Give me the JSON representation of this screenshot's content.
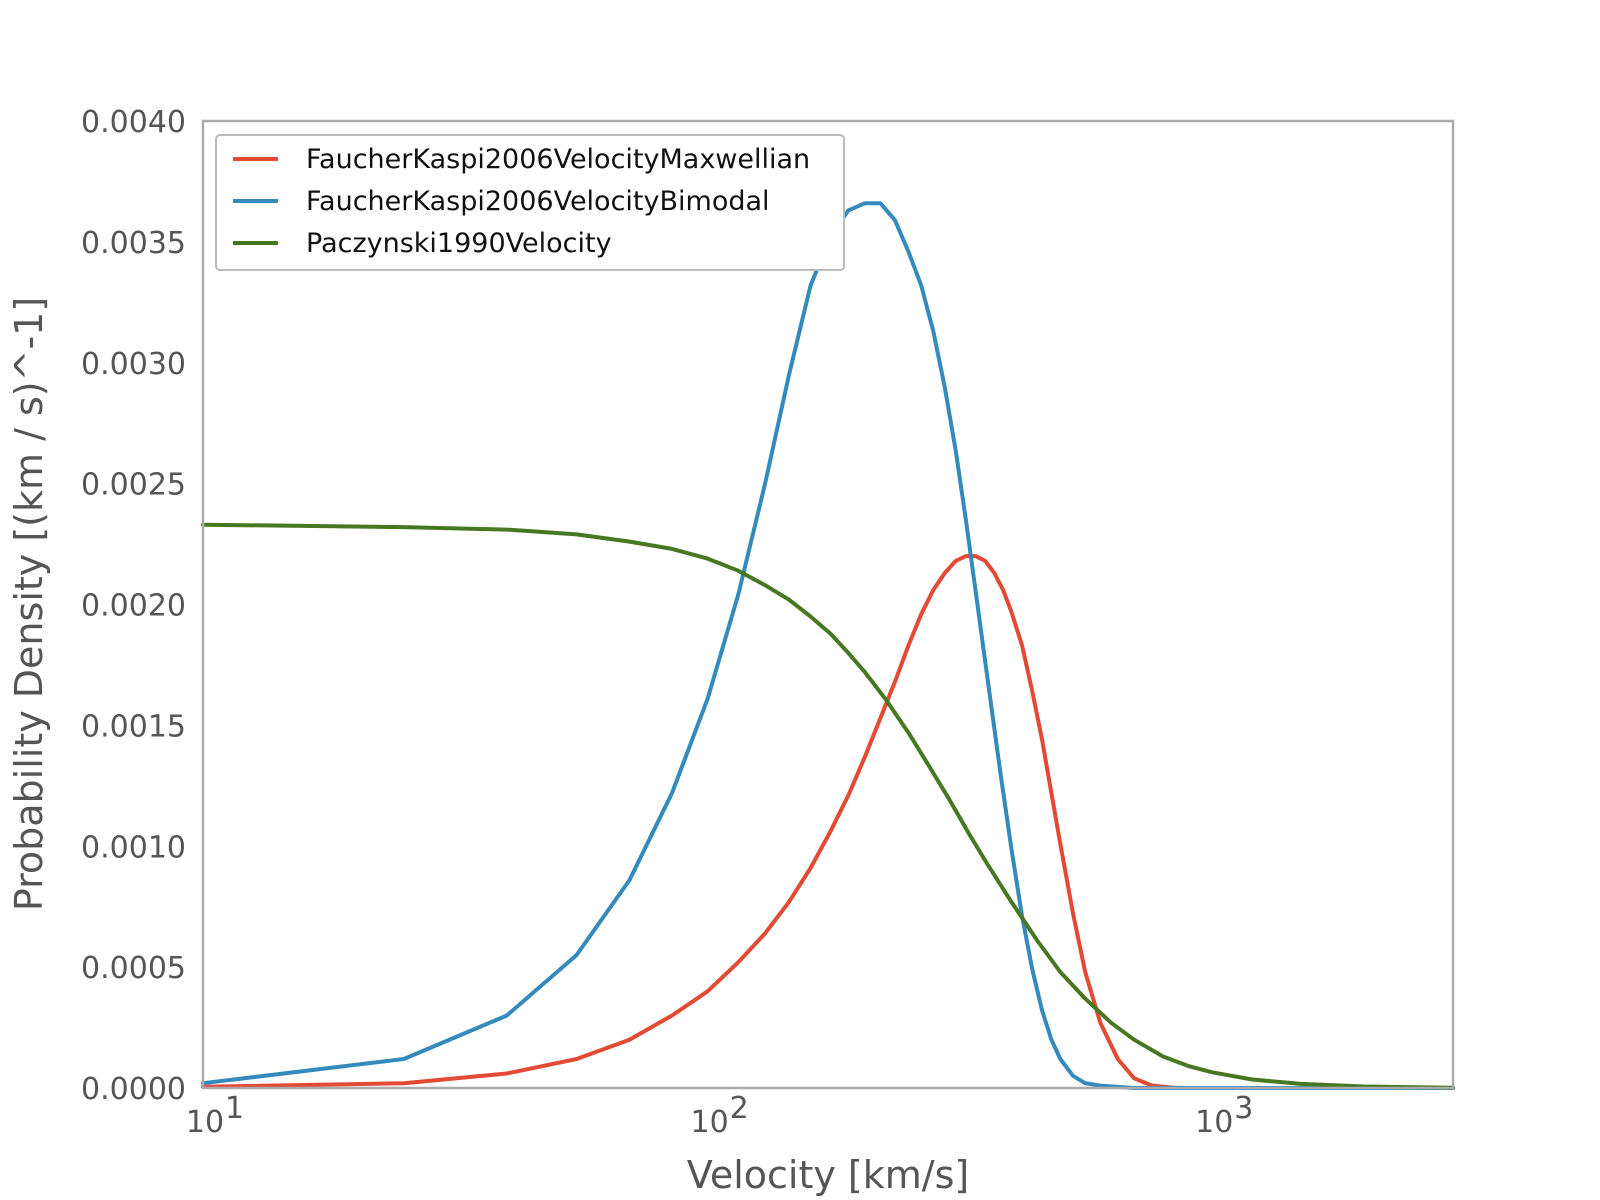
{
  "chart_data": {
    "type": "line",
    "xlabel": "Velocity [km/s]",
    "ylabel": "Probability Density [(km / s)^-1]",
    "xscale": "log",
    "xlim": [
      10,
      3000
    ],
    "ylim": [
      0,
      0.004
    ],
    "grid": false,
    "legend_position": "top-left",
    "x_ticks": [
      {
        "value": 10,
        "base": "10",
        "exp": "1"
      },
      {
        "value": 100,
        "base": "10",
        "exp": "2"
      },
      {
        "value": 1000,
        "base": "10",
        "exp": "3"
      }
    ],
    "y_ticks": [
      {
        "value": 0.0,
        "label": "0.0000"
      },
      {
        "value": 0.0005,
        "label": "0.0005"
      },
      {
        "value": 0.001,
        "label": "0.0010"
      },
      {
        "value": 0.0015,
        "label": "0.0015"
      },
      {
        "value": 0.002,
        "label": "0.0020"
      },
      {
        "value": 0.0025,
        "label": "0.0025"
      },
      {
        "value": 0.003,
        "label": "0.0030"
      },
      {
        "value": 0.0035,
        "label": "0.0035"
      },
      {
        "value": 0.004,
        "label": "0.0040"
      }
    ],
    "series": [
      {
        "name": "FaucherKaspi2006VelocityMaxwellian",
        "color": "#E24A33",
        "points": [
          [
            10,
            5e-06
          ],
          [
            25,
            2e-05
          ],
          [
            40,
            6e-05
          ],
          [
            55,
            0.00012
          ],
          [
            70,
            0.0002
          ],
          [
            85,
            0.0003
          ],
          [
            100,
            0.0004
          ],
          [
            115,
            0.00052
          ],
          [
            130,
            0.00064
          ],
          [
            145,
            0.00077
          ],
          [
            160,
            0.00091
          ],
          [
            175,
            0.00106
          ],
          [
            190,
            0.00121
          ],
          [
            205,
            0.00137
          ],
          [
            220,
            0.00153
          ],
          [
            235,
            0.00168
          ],
          [
            250,
            0.00183
          ],
          [
            265,
            0.00196
          ],
          [
            280,
            0.00206
          ],
          [
            295,
            0.00213
          ],
          [
            310,
            0.00218
          ],
          [
            325,
            0.0022
          ],
          [
            340,
            0.0022
          ],
          [
            355,
            0.00218
          ],
          [
            370,
            0.00213
          ],
          [
            385,
            0.00206
          ],
          [
            400,
            0.00197
          ],
          [
            420,
            0.00183
          ],
          [
            440,
            0.00164
          ],
          [
            460,
            0.00144
          ],
          [
            480,
            0.00122
          ],
          [
            500,
            0.00101
          ],
          [
            530,
            0.00072
          ],
          [
            560,
            0.00048
          ],
          [
            600,
            0.00027
          ],
          [
            650,
            0.00012
          ],
          [
            700,
            4e-05
          ],
          [
            760,
            1e-05
          ],
          [
            850,
            0.0
          ],
          [
            1000,
            0.0
          ],
          [
            3000,
            0.0
          ]
        ]
      },
      {
        "name": "FaucherKaspi2006VelocityBimodal",
        "color": "#348ABD",
        "points": [
          [
            10,
            2e-05
          ],
          [
            25,
            0.00012
          ],
          [
            40,
            0.0003
          ],
          [
            55,
            0.00055
          ],
          [
            70,
            0.00086
          ],
          [
            85,
            0.00122
          ],
          [
            100,
            0.00161
          ],
          [
            115,
            0.00204
          ],
          [
            130,
            0.0025
          ],
          [
            145,
            0.00295
          ],
          [
            160,
            0.00332
          ],
          [
            175,
            0.00352
          ],
          [
            190,
            0.00363
          ],
          [
            205,
            0.00366
          ],
          [
            220,
            0.00366
          ],
          [
            235,
            0.00359
          ],
          [
            250,
            0.00346
          ],
          [
            265,
            0.00332
          ],
          [
            280,
            0.00313
          ],
          [
            295,
            0.0029
          ],
          [
            310,
            0.00264
          ],
          [
            325,
            0.00235
          ],
          [
            340,
            0.00205
          ],
          [
            360,
            0.00167
          ],
          [
            380,
            0.00131
          ],
          [
            400,
            0.00099
          ],
          [
            420,
            0.00071
          ],
          [
            440,
            0.00049
          ],
          [
            460,
            0.00032
          ],
          [
            480,
            0.0002
          ],
          [
            500,
            0.00012
          ],
          [
            530,
            5e-05
          ],
          [
            560,
            2e-05
          ],
          [
            600,
            1e-05
          ],
          [
            700,
            0.0
          ],
          [
            1000,
            0.0
          ],
          [
            3000,
            0.0
          ]
        ]
      },
      {
        "name": "Paczynski1990Velocity",
        "color": "#467821",
        "points": [
          [
            10,
            0.00233
          ],
          [
            25,
            0.00232
          ],
          [
            40,
            0.00231
          ],
          [
            55,
            0.00229
          ],
          [
            70,
            0.00226
          ],
          [
            85,
            0.00223
          ],
          [
            100,
            0.00219
          ],
          [
            115,
            0.00214
          ],
          [
            130,
            0.00208
          ],
          [
            145,
            0.00202
          ],
          [
            160,
            0.00195
          ],
          [
            175,
            0.00188
          ],
          [
            190,
            0.0018
          ],
          [
            205,
            0.00172
          ],
          [
            225,
            0.00161
          ],
          [
            250,
            0.00147
          ],
          [
            275,
            0.00133
          ],
          [
            300,
            0.0012
          ],
          [
            330,
            0.00105
          ],
          [
            360,
            0.00092
          ],
          [
            400,
            0.00077
          ],
          [
            450,
            0.00061
          ],
          [
            500,
            0.00048
          ],
          [
            560,
            0.00037
          ],
          [
            630,
            0.00027
          ],
          [
            700,
            0.0002
          ],
          [
            800,
            0.00013
          ],
          [
            900,
            9e-05
          ],
          [
            1000,
            6.5e-05
          ],
          [
            1200,
            3.5e-05
          ],
          [
            1500,
            1.7e-05
          ],
          [
            2000,
            6e-06
          ],
          [
            3000,
            1e-06
          ]
        ]
      }
    ]
  }
}
